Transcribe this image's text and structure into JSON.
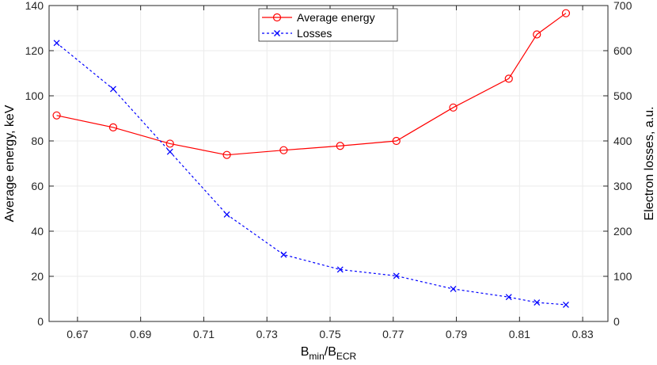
{
  "chart_data": {
    "type": "line",
    "title": "",
    "grid": true,
    "legend_position": "top-center",
    "x": {
      "ticks": [
        "0.67",
        "0.69",
        "0.71",
        "0.73",
        "0.75",
        "0.77",
        "0.79",
        "0.81",
        "0.83"
      ],
      "tick_values": [
        0.67,
        0.69,
        0.71,
        0.73,
        0.75,
        0.77,
        0.79,
        0.81,
        0.83
      ],
      "lim": [
        0.661,
        0.838
      ],
      "label": {
        "main1": "B",
        "sub1": "min",
        "sep": "/B",
        "sub2": "ECR"
      }
    },
    "y_left": {
      "label": "Average energy, keV",
      "lim": [
        0,
        140
      ],
      "ticks": [
        "0",
        "20",
        "40",
        "60",
        "80",
        "100",
        "120",
        "140"
      ],
      "tick_values": [
        0,
        20,
        40,
        60,
        80,
        100,
        120,
        140
      ]
    },
    "y_right": {
      "label": "Electron losses, a.u.",
      "lim": [
        0,
        700
      ],
      "ticks": [
        "0",
        "100",
        "200",
        "300",
        "400",
        "500",
        "600",
        "700"
      ],
      "tick_values": [
        0,
        100,
        200,
        300,
        400,
        500,
        600,
        700
      ]
    },
    "series": [
      {
        "name": "Average energy",
        "axis": "left",
        "color": "#ff0000",
        "marker": "circle",
        "line": "solid",
        "x": [
          0.6634,
          0.6813,
          0.6993,
          0.7173,
          0.7353,
          0.7532,
          0.771,
          0.789,
          0.8066,
          0.8155,
          0.8247
        ],
        "y": [
          91.3,
          86.0,
          78.8,
          73.8,
          75.9,
          77.8,
          80.0,
          94.8,
          107.6,
          127.2,
          136.6
        ]
      },
      {
        "name": "Losses",
        "axis": "right",
        "color": "#0000ff",
        "marker": "x",
        "line": "dashed",
        "x": [
          0.6634,
          0.6813,
          0.6993,
          0.7173,
          0.7353,
          0.7532,
          0.771,
          0.789,
          0.8066,
          0.8155,
          0.8247
        ],
        "y": [
          617,
          515,
          376,
          237,
          148,
          115,
          101,
          72,
          54,
          42,
          37
        ]
      }
    ]
  }
}
